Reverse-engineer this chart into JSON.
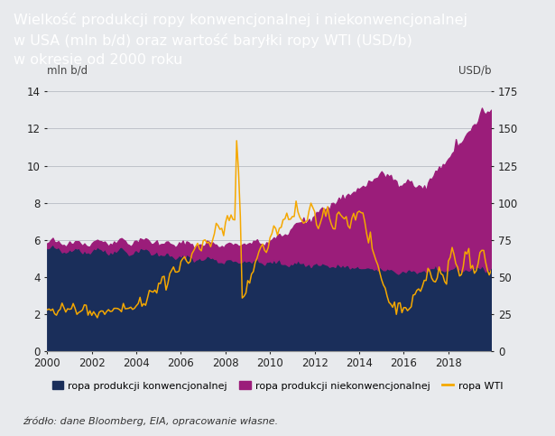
{
  "title_line1": "Wielkość produkcji ropy konwencjonalnej i niekonwencjonalnej",
  "title_line2": "w USA (mln b/d) oraz wartość baryłki ropy WTI (USD/b)",
  "title_line3": "w okresie od 2000 roku",
  "title_bg_color": "#0d1f4e",
  "title_text_color": "#ffffff",
  "plot_bg_color": "#e8eaed",
  "fig_bg_color": "#e8eaed",
  "ylabel_left": "mln b/d",
  "ylabel_right": "USD/b",
  "ylim_left": [
    0,
    14
  ],
  "ylim_right": [
    0,
    175
  ],
  "yticks_left": [
    0,
    2,
    4,
    6,
    8,
    10,
    12,
    14
  ],
  "yticks_right": [
    0,
    25,
    50,
    75,
    100,
    125,
    150,
    175
  ],
  "xmin": 2000,
  "xmax": 2019.92,
  "xticks": [
    2000,
    2002,
    2004,
    2006,
    2008,
    2010,
    2012,
    2014,
    2016,
    2018
  ],
  "color_conventional": "#1a2e5a",
  "color_unconventional": "#9b1d7a",
  "color_wti": "#f5a800",
  "legend_labels": [
    "ropa produkcji konwencjonalnej",
    "ropa produkcji niekonwencjonalnej",
    "ropa WTI"
  ],
  "source_text": "źródło: dane Bloomberg, EIA, opracowanie własne.",
  "grid_color": "#b8bcc4",
  "axis_color": "#999999",
  "title_fontsize": 11.5,
  "tick_fontsize": 8.5,
  "legend_fontsize": 8,
  "source_fontsize": 8
}
